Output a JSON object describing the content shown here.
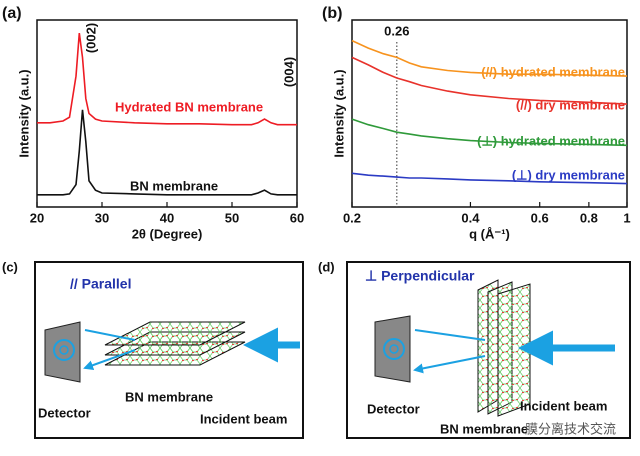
{
  "chart_data": [
    {
      "type": "line",
      "panel": "(a)",
      "x_label": "2θ (Degree)",
      "y_label": "Intensity (a.u.)",
      "xlim": [
        20,
        60
      ],
      "xticks": [
        20,
        30,
        40,
        50,
        60
      ],
      "ylim": [
        0,
        100
      ],
      "x": [
        20,
        22,
        24,
        25,
        26,
        26.5,
        27,
        27.5,
        28,
        29,
        30,
        35,
        40,
        45,
        50,
        53,
        54,
        55,
        56,
        57,
        60
      ],
      "series": [
        {
          "name": "Hydrated BN membrane",
          "color": "#ee1c24",
          "values": [
            45,
            45,
            46,
            48,
            70,
            93,
            80,
            58,
            50,
            47,
            46,
            45,
            44.5,
            44.5,
            44,
            44,
            45,
            47,
            45,
            44,
            44
          ]
        },
        {
          "name": "BN membrane",
          "color": "#111111",
          "values": [
            6.5,
            6.5,
            6.5,
            7,
            12,
            30,
            52,
            35,
            14,
            9,
            7.5,
            7,
            6.5,
            6.5,
            6.5,
            6.5,
            7.5,
            9,
            7,
            6.5,
            6.5
          ]
        }
      ],
      "annotations": [
        "(002)",
        "(004)"
      ]
    },
    {
      "type": "line",
      "panel": "(b)",
      "x_label": "q (Å⁻¹)",
      "y_label": "Intensity (a.u.)",
      "xscale": "log",
      "xlim": [
        0.2,
        1
      ],
      "xticks": [
        0.2,
        0.4,
        0.6,
        0.8,
        1
      ],
      "ylim": [
        0,
        100
      ],
      "x": [
        0.2,
        0.22,
        0.24,
        0.26,
        0.28,
        0.3,
        0.35,
        0.4,
        0.5,
        0.6,
        0.8,
        1
      ],
      "series": [
        {
          "name": "(//) hydrated membrane",
          "color": "#f7931e",
          "values": [
            89,
            85,
            82,
            80,
            77,
            75,
            73,
            72,
            71,
            71,
            70.5,
            70
          ]
        },
        {
          "name": "(//) dry membrane",
          "color": "#e8322b",
          "values": [
            80,
            76,
            72,
            69,
            67,
            65,
            62,
            60,
            58,
            57,
            56,
            55
          ]
        },
        {
          "name": "(⊥) hydrated membrane",
          "color": "#2f9a3a",
          "values": [
            47,
            44,
            42,
            40,
            39,
            38,
            36.5,
            35.5,
            34.5,
            34,
            33.5,
            33
          ]
        },
        {
          "name": "(⊥) dry membrane",
          "color": "#2b3bc4",
          "values": [
            18,
            17,
            16.5,
            16,
            15.5,
            15.5,
            15,
            14.5,
            14,
            13.5,
            13,
            12.5
          ]
        }
      ],
      "marker_line": 0.26
    }
  ],
  "diagrams": [
    {
      "panel": "(c)",
      "title": "// Parallel",
      "detector": "Detector",
      "membrane": "BN membrane",
      "beam": "Incident beam"
    },
    {
      "panel": "(d)",
      "title": "⊥ Perpendicular",
      "detector": "Detector",
      "membrane": "BN membrane",
      "beam": "Incident beam"
    }
  ],
  "watermark": "膜分离技术交流"
}
